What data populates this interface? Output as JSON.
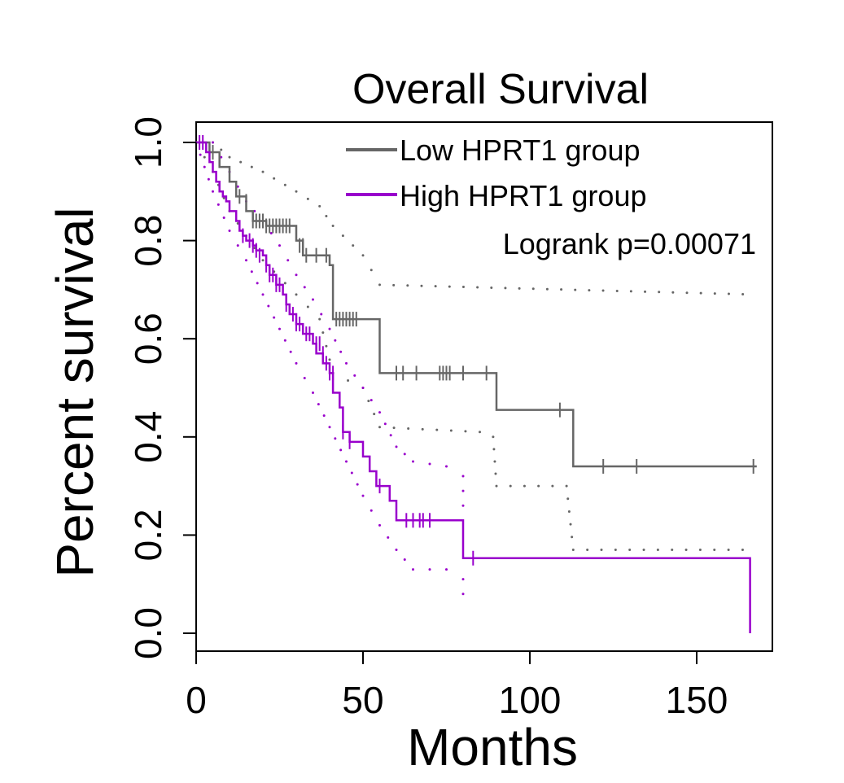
{
  "chart_data": {
    "type": "line",
    "title": "Overall Survival",
    "xlabel": "Months",
    "ylabel": "Percent survival",
    "xlim": [
      0,
      170
    ],
    "ylim": [
      0,
      1.05
    ],
    "x_ticks": [
      0,
      50,
      100,
      150
    ],
    "x_tick_labels": [
      "0",
      "50",
      "100",
      "150"
    ],
    "y_ticks": [
      0,
      0.2,
      0.4,
      0.6,
      0.8,
      1.0
    ],
    "y_tick_labels": [
      "0.0",
      "0.2",
      "0.4",
      "0.6",
      "0.8",
      "1.0"
    ],
    "grid": false,
    "legend_position": "top-right",
    "annotation": "Logrank p=0.00071",
    "series": [
      {
        "name": "Low HPRT1 group",
        "color": "#666666",
        "steps": [
          [
            0,
            1.0
          ],
          [
            4,
            0.98
          ],
          [
            7,
            0.95
          ],
          [
            10,
            0.92
          ],
          [
            12,
            0.89
          ],
          [
            15,
            0.86
          ],
          [
            17,
            0.84
          ],
          [
            21,
            0.83
          ],
          [
            30,
            0.8
          ],
          [
            32,
            0.77
          ],
          [
            40,
            0.75
          ],
          [
            41,
            0.64
          ],
          [
            54,
            0.64
          ],
          [
            55,
            0.53
          ],
          [
            90,
            0.53
          ],
          [
            90,
            0.455
          ],
          [
            113,
            0.455
          ],
          [
            113,
            0.34
          ],
          [
            168,
            0.34
          ]
        ],
        "censored": [
          [
            5,
            0.98
          ],
          [
            13,
            0.89
          ],
          [
            15,
            0.88
          ],
          [
            17,
            0.84
          ],
          [
            18,
            0.84
          ],
          [
            19,
            0.84
          ],
          [
            20,
            0.84
          ],
          [
            21,
            0.83
          ],
          [
            22,
            0.83
          ],
          [
            23,
            0.83
          ],
          [
            24,
            0.83
          ],
          [
            25,
            0.83
          ],
          [
            26,
            0.83
          ],
          [
            27,
            0.83
          ],
          [
            28,
            0.83
          ],
          [
            31,
            0.79
          ],
          [
            32,
            0.79
          ],
          [
            33,
            0.77
          ],
          [
            36,
            0.77
          ],
          [
            39,
            0.77
          ],
          [
            42,
            0.64
          ],
          [
            43,
            0.64
          ],
          [
            44,
            0.64
          ],
          [
            45,
            0.64
          ],
          [
            46,
            0.64
          ],
          [
            47,
            0.64
          ],
          [
            48,
            0.64
          ],
          [
            60,
            0.53
          ],
          [
            62,
            0.53
          ],
          [
            66,
            0.53
          ],
          [
            73,
            0.53
          ],
          [
            74,
            0.53
          ],
          [
            75,
            0.53
          ],
          [
            76,
            0.53
          ],
          [
            80,
            0.53
          ],
          [
            87,
            0.53
          ],
          [
            109,
            0.455
          ],
          [
            122,
            0.34
          ],
          [
            132,
            0.34
          ],
          [
            167,
            0.34
          ]
        ],
        "ci_upper": [
          [
            0,
            1.0
          ],
          [
            5,
            1.0
          ],
          [
            10,
            0.97
          ],
          [
            20,
            0.94
          ],
          [
            30,
            0.9
          ],
          [
            37,
            0.87
          ],
          [
            41,
            0.83
          ],
          [
            50,
            0.77
          ],
          [
            55,
            0.71
          ],
          [
            168,
            0.69
          ]
        ],
        "ci_lower": [
          [
            0,
            1.0
          ],
          [
            5,
            0.94
          ],
          [
            10,
            0.86
          ],
          [
            20,
            0.76
          ],
          [
            30,
            0.69
          ],
          [
            37,
            0.64
          ],
          [
            41,
            0.53
          ],
          [
            50,
            0.5
          ],
          [
            55,
            0.42
          ],
          [
            85,
            0.41
          ],
          [
            89,
            0.4
          ],
          [
            90,
            0.3
          ],
          [
            111,
            0.3
          ],
          [
            113,
            0.17
          ],
          [
            168,
            0.17
          ]
        ]
      },
      {
        "name": "High HPRT1 group",
        "color": "#9900cc",
        "steps": [
          [
            0,
            1.0
          ],
          [
            2,
            1.0
          ],
          [
            3,
            0.98
          ],
          [
            4,
            0.96
          ],
          [
            5,
            0.94
          ],
          [
            6,
            0.92
          ],
          [
            7,
            0.9
          ],
          [
            8,
            0.89
          ],
          [
            9,
            0.88
          ],
          [
            10,
            0.86
          ],
          [
            12,
            0.84
          ],
          [
            13,
            0.82
          ],
          [
            14,
            0.81
          ],
          [
            15,
            0.8
          ],
          [
            17,
            0.79
          ],
          [
            18,
            0.78
          ],
          [
            20,
            0.77
          ],
          [
            21,
            0.75
          ],
          [
            22,
            0.73
          ],
          [
            24,
            0.71
          ],
          [
            26,
            0.69
          ],
          [
            27,
            0.67
          ],
          [
            28,
            0.65
          ],
          [
            30,
            0.63
          ],
          [
            32,
            0.61
          ],
          [
            35,
            0.59
          ],
          [
            36,
            0.57
          ],
          [
            38,
            0.55
          ],
          [
            40,
            0.53
          ],
          [
            41,
            0.49
          ],
          [
            43,
            0.46
          ],
          [
            44,
            0.41
          ],
          [
            46,
            0.39
          ],
          [
            50,
            0.36
          ],
          [
            52,
            0.33
          ],
          [
            54,
            0.3
          ],
          [
            58,
            0.27
          ],
          [
            60,
            0.23
          ],
          [
            80,
            0.23
          ],
          [
            80,
            0.153
          ],
          [
            166,
            0.153
          ],
          [
            166,
            0.0
          ]
        ],
        "censored": [
          [
            1,
            1.0
          ],
          [
            2,
            1.0
          ],
          [
            14,
            0.81
          ],
          [
            16,
            0.8
          ],
          [
            17,
            0.79
          ],
          [
            18,
            0.78
          ],
          [
            19,
            0.77
          ],
          [
            21,
            0.75
          ],
          [
            22,
            0.73
          ],
          [
            23,
            0.73
          ],
          [
            24,
            0.71
          ],
          [
            25,
            0.71
          ],
          [
            27,
            0.67
          ],
          [
            29,
            0.65
          ],
          [
            30,
            0.63
          ],
          [
            31,
            0.63
          ],
          [
            33,
            0.61
          ],
          [
            34,
            0.61
          ],
          [
            36,
            0.59
          ],
          [
            37,
            0.59
          ],
          [
            38,
            0.57
          ],
          [
            39,
            0.55
          ],
          [
            40,
            0.53
          ],
          [
            41,
            0.53
          ],
          [
            44,
            0.41
          ],
          [
            46,
            0.39
          ],
          [
            55,
            0.3
          ],
          [
            63,
            0.23
          ],
          [
            65,
            0.23
          ],
          [
            67,
            0.23
          ],
          [
            68,
            0.23
          ],
          [
            70,
            0.23
          ],
          [
            83,
            0.153
          ]
        ],
        "ci_upper": [
          [
            0,
            1.0
          ],
          [
            5,
            1.0
          ],
          [
            10,
            0.94
          ],
          [
            15,
            0.88
          ],
          [
            20,
            0.84
          ],
          [
            25,
            0.79
          ],
          [
            30,
            0.73
          ],
          [
            35,
            0.68
          ],
          [
            40,
            0.62
          ],
          [
            45,
            0.55
          ],
          [
            50,
            0.5
          ],
          [
            55,
            0.45
          ],
          [
            60,
            0.38
          ],
          [
            65,
            0.35
          ],
          [
            75,
            0.34
          ],
          [
            80,
            0.32
          ],
          [
            80,
            0.23
          ]
        ],
        "ci_lower": [
          [
            0,
            1.0
          ],
          [
            5,
            0.9
          ],
          [
            10,
            0.82
          ],
          [
            15,
            0.76
          ],
          [
            20,
            0.69
          ],
          [
            25,
            0.62
          ],
          [
            30,
            0.55
          ],
          [
            35,
            0.49
          ],
          [
            40,
            0.42
          ],
          [
            45,
            0.35
          ],
          [
            50,
            0.28
          ],
          [
            55,
            0.22
          ],
          [
            60,
            0.17
          ],
          [
            65,
            0.13
          ],
          [
            75,
            0.13
          ],
          [
            80,
            0.11
          ],
          [
            80,
            0.05
          ]
        ]
      }
    ]
  }
}
